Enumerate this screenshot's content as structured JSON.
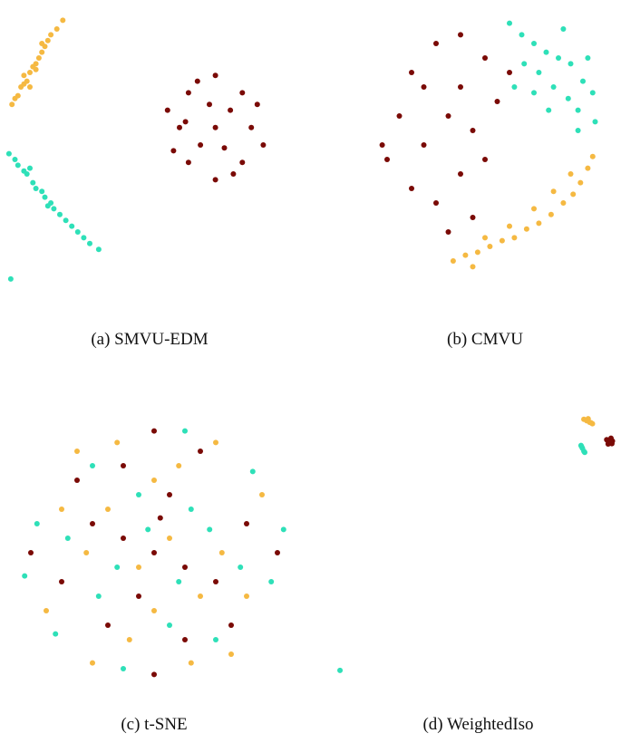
{
  "chart_data": [
    {
      "type": "scatter",
      "title": "(a) SMVU-EDM",
      "xlim": [
        0,
        100
      ],
      "ylim": [
        0,
        100
      ],
      "series": [
        {
          "color": "#f5b942",
          "x": [
            4,
            5,
            6,
            7,
            8,
            9,
            10,
            11,
            12,
            13,
            14,
            15,
            16,
            17,
            19,
            21,
            8,
            12,
            14,
            10
          ],
          "y": [
            64,
            66,
            67,
            70,
            71,
            72,
            75,
            77,
            78,
            80,
            82,
            84,
            86,
            88,
            90,
            93,
            74,
            76,
            85,
            70
          ]
        },
        {
          "color": "#2ee0b8",
          "x": [
            3,
            5,
            6,
            8,
            9,
            11,
            12,
            14,
            15,
            17,
            18,
            20,
            22,
            24,
            26,
            28,
            30,
            33,
            10,
            16,
            3.6
          ],
          "y": [
            47,
            45,
            43,
            41,
            40,
            37,
            35,
            34,
            32,
            30,
            28,
            26,
            24,
            22,
            20,
            18,
            16,
            14,
            42,
            29,
            3.8
          ]
        },
        {
          "color": "#7a0a06",
          "x": [
            72,
            60,
            84,
            72,
            72,
            63,
            81,
            63,
            81,
            56,
            88,
            67,
            77,
            66,
            78,
            58,
            86,
            70,
            75,
            62
          ],
          "y": [
            56,
            56,
            56,
            74,
            38,
            68,
            68,
            44,
            44,
            62,
            50,
            50,
            62,
            72,
            40,
            48,
            64,
            64,
            49,
            58
          ]
        }
      ]
    },
    {
      "type": "scatter",
      "title": "(b) CMVU",
      "xlim": [
        0,
        100
      ],
      "ylim": [
        0,
        100
      ],
      "series": [
        {
          "color": "#7a0a06",
          "x": [
            10,
            15,
            20,
            30,
            40,
            50,
            25,
            35,
            45,
            55,
            20,
            30,
            40,
            50,
            35,
            45,
            8,
            60,
            25,
            40
          ],
          "y": [
            45,
            60,
            75,
            85,
            88,
            80,
            50,
            60,
            55,
            65,
            35,
            30,
            40,
            45,
            20,
            25,
            50,
            75,
            70,
            70
          ]
        },
        {
          "color": "#2ee0b8",
          "x": [
            60,
            65,
            70,
            75,
            80,
            85,
            90,
            94,
            72,
            78,
            84,
            88,
            66,
            92,
            82,
            76,
            70,
            88,
            62,
            95
          ],
          "y": [
            92,
            88,
            85,
            82,
            80,
            78,
            72,
            68,
            75,
            70,
            66,
            62,
            78,
            80,
            90,
            62,
            68,
            55,
            70,
            58
          ]
        },
        {
          "color": "#f5b942",
          "x": [
            37,
            42,
            47,
            52,
            57,
            62,
            67,
            72,
            77,
            82,
            86,
            89,
            92,
            94,
            85,
            78,
            70,
            60,
            50,
            45
          ],
          "y": [
            10,
            12,
            13,
            15,
            17,
            18,
            21,
            23,
            26,
            30,
            33,
            37,
            42,
            46,
            40,
            34,
            28,
            22,
            18,
            8
          ]
        }
      ]
    },
    {
      "type": "scatter",
      "title": "(c) t-SNE",
      "xlim": [
        0,
        100
      ],
      "ylim": [
        0,
        100
      ],
      "series": [
        {
          "color": "#7a0a06",
          "x": [
            50,
            30,
            70,
            40,
            60,
            20,
            80,
            45,
            55,
            35,
            65,
            25,
            75,
            50,
            50,
            10,
            90,
            40,
            60,
            52
          ],
          "y": [
            50,
            60,
            40,
            80,
            20,
            40,
            60,
            35,
            70,
            25,
            85,
            75,
            25,
            92,
            8,
            50,
            50,
            55,
            45,
            62
          ]
        },
        {
          "color": "#f5b942",
          "x": [
            45,
            55,
            35,
            65,
            28,
            72,
            50,
            50,
            20,
            80,
            38,
            62,
            15,
            85,
            30,
            70,
            42,
            58,
            25,
            75
          ],
          "y": [
            45,
            55,
            65,
            35,
            50,
            50,
            30,
            75,
            65,
            35,
            88,
            12,
            30,
            70,
            12,
            88,
            20,
            80,
            85,
            15
          ]
        },
        {
          "color": "#2ee0b8",
          "x": [
            48,
            58,
            38,
            62,
            32,
            68,
            22,
            78,
            45,
            55,
            12,
            88,
            30,
            70,
            40,
            60,
            18,
            82,
            8,
            92
          ],
          "y": [
            58,
            40,
            45,
            65,
            35,
            58,
            55,
            45,
            70,
            25,
            60,
            40,
            80,
            20,
            10,
            92,
            22,
            78,
            42,
            58
          ]
        }
      ]
    },
    {
      "type": "scatter",
      "title": "(d) WeightedIso",
      "xlim": [
        0,
        100
      ],
      "ylim": [
        0,
        100
      ],
      "series": [
        {
          "color": "#f5b942",
          "x": [
            87,
            88,
            89,
            90,
            88.5,
            89.5
          ],
          "y": [
            96,
            95.5,
            95,
            94.5,
            96.2,
            94.8
          ]
        },
        {
          "color": "#2ee0b8",
          "x": [
            86,
            86.5,
            87,
            86.2,
            87.3,
            1.6
          ],
          "y": [
            87,
            86,
            85,
            86.6,
            84.6,
            9.4
          ]
        },
        {
          "color": "#7a0a06",
          "x": [
            95,
            96,
            97,
            95.5,
            96.5,
            96,
            95.2,
            96.8
          ],
          "y": [
            89,
            88,
            88.5,
            87.5,
            89.5,
            88.4,
            88.8,
            87.6
          ]
        }
      ]
    }
  ]
}
